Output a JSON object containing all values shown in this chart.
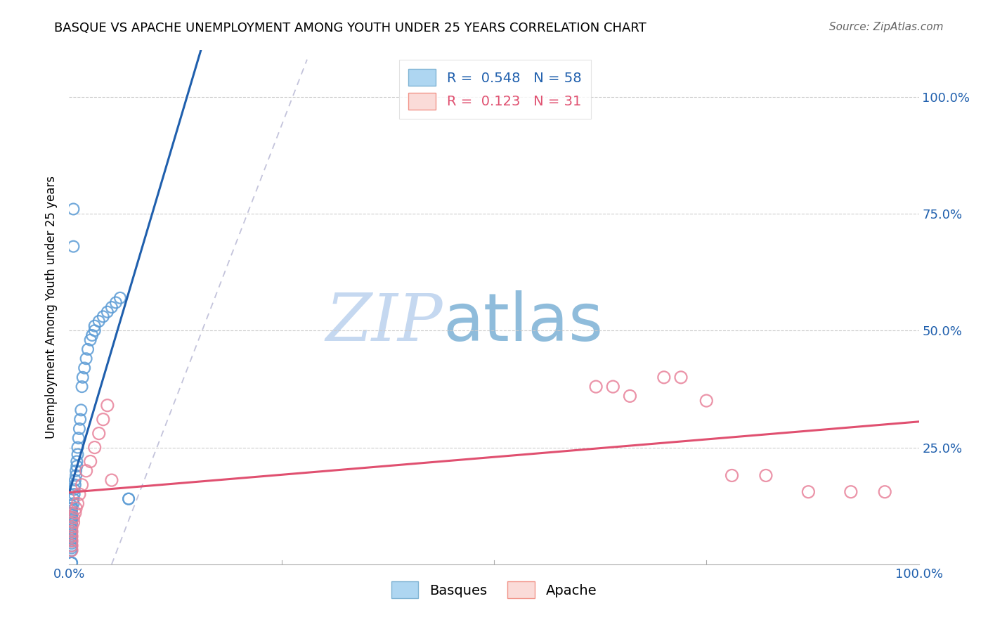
{
  "title": "BASQUE VS APACHE UNEMPLOYMENT AMONG YOUTH UNDER 25 YEARS CORRELATION CHART",
  "source": "Source: ZipAtlas.com",
  "ylabel": "Unemployment Among Youth under 25 years",
  "watermark_zip": "ZIP",
  "watermark_atlas": "atlas",
  "legend_entries": [
    {
      "label": "Basques",
      "color_face": "#AED6F1",
      "color_edge": "#5DADE2",
      "R": 0.548,
      "N": 58
    },
    {
      "label": "Apache",
      "color_face": "#FADBD8",
      "color_edge": "#F1948A",
      "R": 0.123,
      "N": 31
    }
  ],
  "basques_x": [
    0.003,
    0.003,
    0.003,
    0.003,
    0.003,
    0.003,
    0.003,
    0.003,
    0.003,
    0.003,
    0.003,
    0.003,
    0.003,
    0.003,
    0.003,
    0.003,
    0.003,
    0.003,
    0.003,
    0.003,
    0.005,
    0.005,
    0.006,
    0.006,
    0.007,
    0.007,
    0.008,
    0.008,
    0.009,
    0.009,
    0.01,
    0.01,
    0.011,
    0.012,
    0.013,
    0.014,
    0.015,
    0.016,
    0.018,
    0.02,
    0.022,
    0.025,
    0.027,
    0.03,
    0.03,
    0.035,
    0.04,
    0.045,
    0.05,
    0.055,
    0.06,
    0.07,
    0.07,
    0.005,
    0.005,
    0.003,
    0.003,
    0.003
  ],
  "basques_y": [
    0.03,
    0.035,
    0.04,
    0.045,
    0.05,
    0.055,
    0.06,
    0.065,
    0.07,
    0.075,
    0.08,
    0.085,
    0.09,
    0.095,
    0.1,
    0.105,
    0.11,
    0.115,
    0.12,
    0.125,
    0.13,
    0.14,
    0.15,
    0.16,
    0.17,
    0.18,
    0.19,
    0.2,
    0.21,
    0.22,
    0.235,
    0.25,
    0.27,
    0.29,
    0.31,
    0.33,
    0.38,
    0.4,
    0.42,
    0.44,
    0.46,
    0.48,
    0.49,
    0.5,
    0.51,
    0.52,
    0.53,
    0.54,
    0.55,
    0.56,
    0.57,
    0.14,
    0.14,
    0.76,
    0.68,
    0.003,
    0.003,
    0.003
  ],
  "apache_x": [
    0.003,
    0.003,
    0.003,
    0.003,
    0.003,
    0.003,
    0.005,
    0.005,
    0.007,
    0.008,
    0.01,
    0.012,
    0.015,
    0.02,
    0.025,
    0.03,
    0.035,
    0.04,
    0.045,
    0.05,
    0.62,
    0.64,
    0.66,
    0.7,
    0.72,
    0.75,
    0.78,
    0.82,
    0.87,
    0.92,
    0.96
  ],
  "apache_y": [
    0.03,
    0.04,
    0.05,
    0.06,
    0.07,
    0.08,
    0.09,
    0.1,
    0.11,
    0.12,
    0.13,
    0.15,
    0.17,
    0.2,
    0.22,
    0.25,
    0.28,
    0.31,
    0.34,
    0.18,
    0.38,
    0.38,
    0.36,
    0.4,
    0.4,
    0.35,
    0.19,
    0.19,
    0.155,
    0.155,
    0.155
  ],
  "blue_scatter_edge": "#5B9BD5",
  "blue_scatter_face": "none",
  "pink_scatter_edge": "#E8829A",
  "pink_scatter_face": "none",
  "blue_line_color": "#1F5FAD",
  "pink_line_color": "#E05070",
  "diagonal_color": "#AAAACC",
  "grid_color": "#CCCCCC",
  "background_color": "#FFFFFF",
  "watermark_color_zip": "#C5D8F0",
  "watermark_color_atlas": "#C5D8F0",
  "xmin": 0.0,
  "xmax": 1.0,
  "ymin": 0.0,
  "ymax": 1.1,
  "yticks": [
    0.25,
    0.5,
    0.75,
    1.0
  ],
  "ytick_labels": [
    "25.0%",
    "50.0%",
    "75.0%",
    "100.0%"
  ],
  "xtick_labels_show": [
    "0.0%",
    "100.0%"
  ],
  "xtick_positions_show": [
    0.0,
    1.0
  ],
  "xtick_minor": [
    0.25,
    0.5,
    0.75
  ],
  "title_fontsize": 13,
  "source_fontsize": 11,
  "tick_label_fontsize": 13,
  "ylabel_fontsize": 12
}
